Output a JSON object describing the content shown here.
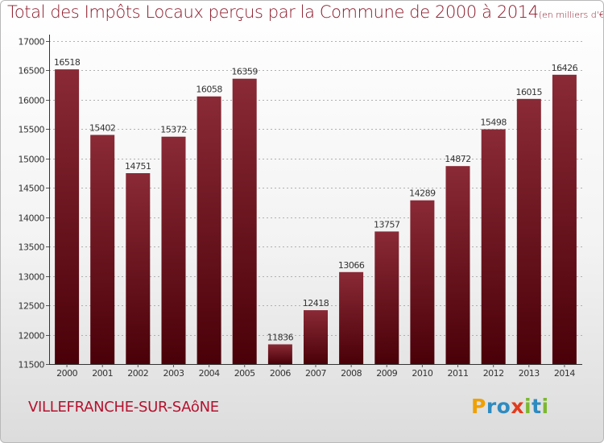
{
  "chart_data": {
    "type": "bar",
    "title": "Total des Impôts Locaux perçus par la Commune de 2000 à 2014",
    "title_unit": "(en milliers d'€)",
    "categories": [
      "2000",
      "2001",
      "2002",
      "2003",
      "2004",
      "2005",
      "2006",
      "2007",
      "2008",
      "2009",
      "2010",
      "2011",
      "2012",
      "2013",
      "2014"
    ],
    "values": [
      16518,
      15402,
      14751,
      15372,
      16058,
      16359,
      11836,
      12418,
      13066,
      13757,
      14289,
      14872,
      15498,
      16015,
      16426
    ],
    "ylim": [
      11500,
      17000
    ],
    "yticks": [
      11500,
      12000,
      12500,
      13000,
      13500,
      14000,
      14500,
      15000,
      15500,
      16000,
      16500,
      17000
    ],
    "grid": "horizontal-dashed",
    "xlabel": "",
    "ylabel": ""
  },
  "footer": {
    "commune": "VILLEFRANCHE-SUR-SAôNE",
    "logo_letters": [
      "P",
      "r",
      "o",
      "x",
      "i",
      "t",
      "i"
    ]
  },
  "colors": {
    "bar_top": "#8a2a36",
    "bar_bottom": "#4a0008",
    "title": "#8b1a2a",
    "commune": "#b5122e",
    "logo": [
      "#f0a000",
      "#2e8bc0",
      "#2e8bc0",
      "#e23b1e",
      "#7cb82f",
      "#2e8bc0",
      "#7cb82f"
    ]
  }
}
